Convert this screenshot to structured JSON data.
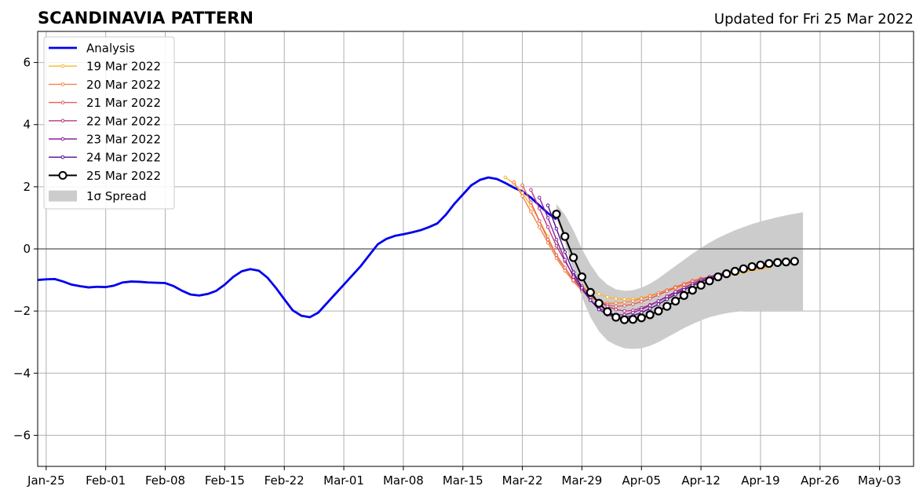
{
  "chart_data": {
    "type": "line",
    "title": "SCANDINAVIA PATTERN",
    "subtitle": "Updated for Fri 25 Mar 2022",
    "xlabel": "",
    "ylabel": "",
    "x_range": [
      "2022-01-24",
      "2022-05-07"
    ],
    "ylim": [
      -7,
      7
    ],
    "y_ticks": [
      -6,
      -4,
      -2,
      0,
      2,
      4,
      6
    ],
    "x_ticks": [
      {
        "date": "2022-01-25",
        "label": "Jan-25"
      },
      {
        "date": "2022-02-01",
        "label": "Feb-01"
      },
      {
        "date": "2022-02-08",
        "label": "Feb-08"
      },
      {
        "date": "2022-02-15",
        "label": "Feb-15"
      },
      {
        "date": "2022-02-22",
        "label": "Feb-22"
      },
      {
        "date": "2022-03-01",
        "label": "Mar-01"
      },
      {
        "date": "2022-03-08",
        "label": "Mar-08"
      },
      {
        "date": "2022-03-15",
        "label": "Mar-15"
      },
      {
        "date": "2022-03-22",
        "label": "Mar-22"
      },
      {
        "date": "2022-03-29",
        "label": "Mar-29"
      },
      {
        "date": "2022-04-05",
        "label": "Apr-05"
      },
      {
        "date": "2022-04-12",
        "label": "Apr-12"
      },
      {
        "date": "2022-04-19",
        "label": "Apr-19"
      },
      {
        "date": "2022-04-26",
        "label": "Apr-26"
      },
      {
        "date": "2022-05-03",
        "label": "May-03"
      }
    ],
    "grid": true,
    "legend_position": "upper-left",
    "analysis": {
      "name": "Analysis",
      "color": "#0000ee",
      "start_date": "2022-01-24",
      "values": [
        -1.0,
        -0.98,
        -0.97,
        -1.05,
        -1.15,
        -1.2,
        -1.24,
        -1.22,
        -1.23,
        -1.18,
        -1.08,
        -1.05,
        -1.06,
        -1.08,
        -1.09,
        -1.1,
        -1.2,
        -1.35,
        -1.47,
        -1.5,
        -1.45,
        -1.35,
        -1.15,
        -0.9,
        -0.72,
        -0.65,
        -0.7,
        -0.92,
        -1.25,
        -1.62,
        -1.98,
        -2.15,
        -2.2,
        -2.05,
        -1.75,
        -1.45,
        -1.15,
        -0.85,
        -0.55,
        -0.2,
        0.15,
        0.32,
        0.42,
        0.47,
        0.53,
        0.6,
        0.7,
        0.82,
        1.1,
        1.45,
        1.75,
        2.05,
        2.22,
        2.3,
        2.25,
        2.12,
        1.97,
        1.85,
        1.65,
        1.4,
        1.15,
        0.95
      ]
    },
    "forecasts": [
      {
        "name": "19 Mar 2022",
        "color": "#f7b733",
        "start_date": "2022-03-20",
        "values": [
          2.3,
          2.1,
          1.8,
          1.4,
          0.9,
          0.4,
          -0.2,
          -0.7,
          -1.0,
          -1.2,
          -1.35,
          -1.45,
          -1.55,
          -1.6,
          -1.62,
          -1.62,
          -1.58,
          -1.5,
          -1.42,
          -1.35,
          -1.28,
          -1.2,
          -1.12,
          -1.05,
          -0.98,
          -0.9,
          -0.85,
          -0.8,
          -0.75,
          -0.7,
          -0.65,
          -0.6
        ]
      },
      {
        "name": "20 Mar 2022",
        "color": "#f2854a",
        "start_date": "2022-03-21",
        "values": [
          2.15,
          1.7,
          1.2,
          0.7,
          0.2,
          -0.3,
          -0.7,
          -1.05,
          -1.35,
          -1.55,
          -1.7,
          -1.75,
          -1.75,
          -1.72,
          -1.68,
          -1.6,
          -1.52,
          -1.42,
          -1.32,
          -1.22,
          -1.12,
          -1.02,
          -0.95,
          -0.9,
          -0.85,
          -0.78,
          -0.72,
          -0.68,
          -0.63,
          -0.6,
          -0.55
        ]
      },
      {
        "name": "21 Mar 2022",
        "color": "#e0605d",
        "start_date": "2022-03-22",
        "values": [
          2.05,
          1.5,
          0.9,
          0.3,
          -0.2,
          -0.6,
          -1.0,
          -1.3,
          -1.55,
          -1.7,
          -1.8,
          -1.85,
          -1.83,
          -1.78,
          -1.7,
          -1.6,
          -1.48,
          -1.36,
          -1.25,
          -1.15,
          -1.05,
          -0.97,
          -0.9,
          -0.83,
          -0.77,
          -0.72,
          -0.67,
          -0.62,
          -0.58,
          -0.55
        ]
      },
      {
        "name": "22 Mar 2022",
        "color": "#b83a84",
        "start_date": "2022-03-23",
        "values": [
          1.9,
          1.3,
          0.7,
          0.1,
          -0.4,
          -0.85,
          -1.2,
          -1.5,
          -1.7,
          -1.85,
          -1.95,
          -2.0,
          -1.98,
          -1.9,
          -1.8,
          -1.68,
          -1.55,
          -1.42,
          -1.3,
          -1.18,
          -1.07,
          -0.97,
          -0.88,
          -0.8,
          -0.73,
          -0.67,
          -0.62,
          -0.58,
          -0.54
        ]
      },
      {
        "name": "23 Mar 2022",
        "color": "#8a1f9a",
        "start_date": "2022-03-24",
        "values": [
          1.65,
          1.0,
          0.3,
          -0.35,
          -0.9,
          -1.3,
          -1.65,
          -1.9,
          -2.05,
          -2.12,
          -2.12,
          -2.05,
          -1.95,
          -1.82,
          -1.68,
          -1.53,
          -1.38,
          -1.25,
          -1.12,
          -1.0,
          -0.9,
          -0.82,
          -0.75,
          -0.68,
          -0.62,
          -0.58,
          -0.54,
          -0.5
        ]
      },
      {
        "name": "24 Mar 2022",
        "color": "#520c8a",
        "start_date": "2022-03-25",
        "values": [
          1.4,
          0.65,
          -0.1,
          -0.75,
          -1.25,
          -1.65,
          -1.95,
          -2.12,
          -2.2,
          -2.2,
          -2.15,
          -2.05,
          -1.92,
          -1.78,
          -1.62,
          -1.47,
          -1.32,
          -1.18,
          -1.05,
          -0.95,
          -0.85,
          -0.77,
          -0.7,
          -0.64,
          -0.58,
          -0.53,
          -0.49
        ]
      },
      {
        "name": "25 Mar 2022",
        "color": "#000000",
        "start_date": "2022-03-26",
        "values": [
          1.12,
          0.4,
          -0.28,
          -0.9,
          -1.4,
          -1.75,
          -2.02,
          -2.2,
          -2.28,
          -2.27,
          -2.22,
          -2.12,
          -2.0,
          -1.85,
          -1.68,
          -1.5,
          -1.33,
          -1.17,
          -1.03,
          -0.9,
          -0.8,
          -0.72,
          -0.64,
          -0.57,
          -0.52,
          -0.47,
          -0.44,
          -0.42,
          -0.4
        ]
      }
    ],
    "spread": {
      "name": "1σ Spread",
      "color": "#cccccc",
      "start_date": "2022-03-26",
      "upper": [
        1.45,
        1.1,
        0.6,
        0.0,
        -0.5,
        -0.9,
        -1.15,
        -1.3,
        -1.35,
        -1.33,
        -1.25,
        -1.12,
        -0.95,
        -0.75,
        -0.55,
        -0.35,
        -0.15,
        0.03,
        0.2,
        0.35,
        0.48,
        0.6,
        0.7,
        0.8,
        0.88,
        0.95,
        1.02,
        1.08,
        1.13,
        1.18
      ],
      "lower": [
        1.0,
        0.2,
        -0.7,
        -1.55,
        -2.2,
        -2.65,
        -2.95,
        -3.1,
        -3.2,
        -3.22,
        -3.2,
        -3.12,
        -3.0,
        -2.85,
        -2.7,
        -2.55,
        -2.42,
        -2.3,
        -2.2,
        -2.13,
        -2.07,
        -2.03,
        -2.0,
        -1.98,
        -1.98,
        -1.98,
        -1.98,
        -1.98,
        -1.98,
        -1.98
      ]
    }
  }
}
